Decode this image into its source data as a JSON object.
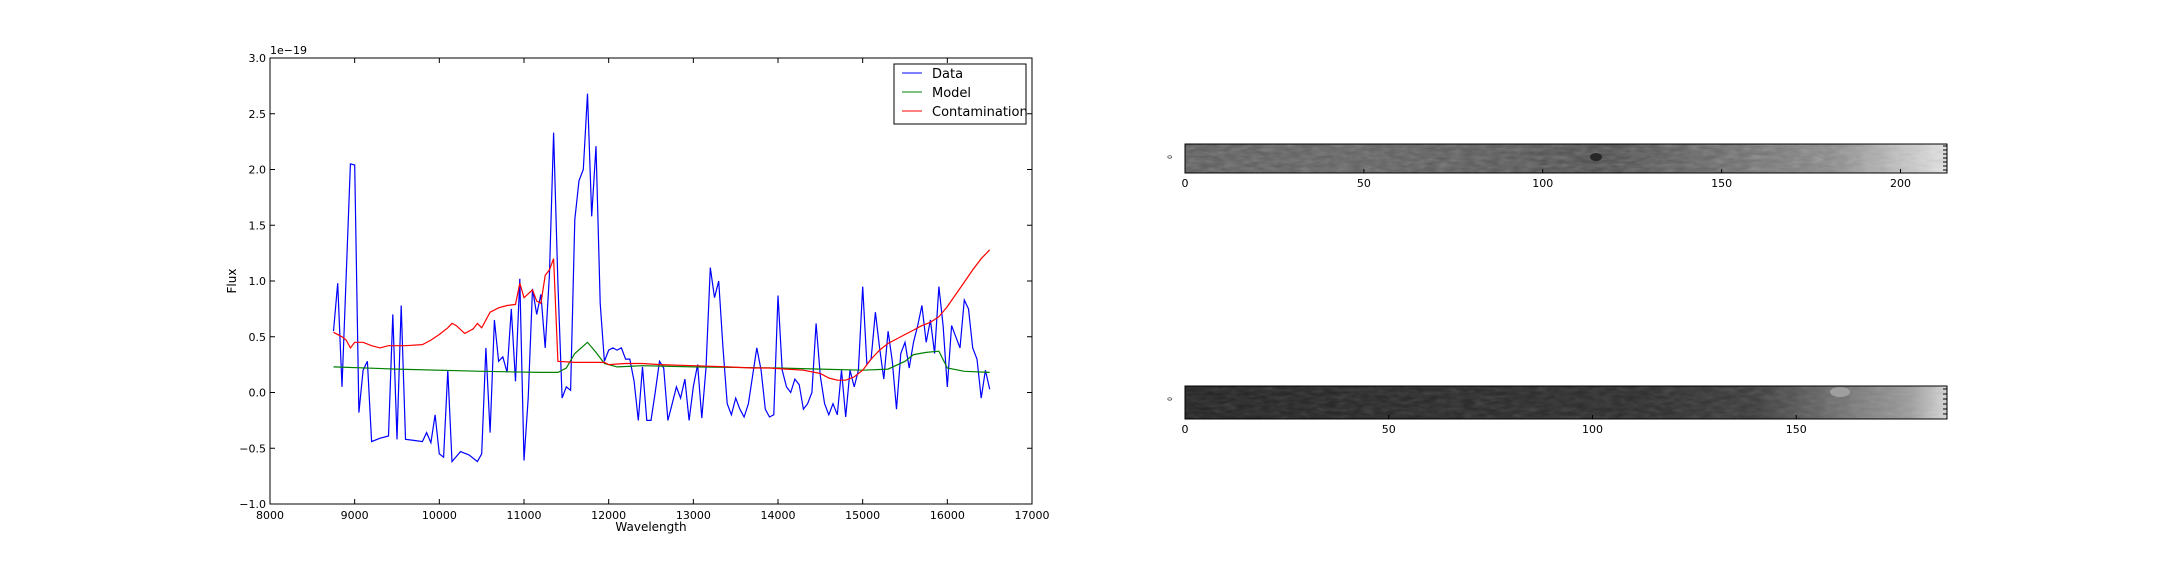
{
  "chart_data": [
    {
      "type": "line",
      "xlabel": "Wavelength",
      "ylabel": "Flux",
      "offset_label": "1e−19",
      "xlim": [
        8000,
        17000
      ],
      "ylim": [
        -1.0,
        3.0
      ],
      "xticks": [
        "8000",
        "9000",
        "10000",
        "11000",
        "12000",
        "13000",
        "14000",
        "15000",
        "16000",
        "17000"
      ],
      "yticks": [
        "−1.0",
        "−0.5",
        "0.0",
        "0.5",
        "1.0",
        "1.5",
        "2.0",
        "2.5",
        "3.0"
      ],
      "legend_position": "top-right",
      "grid": false,
      "series": [
        {
          "name": "Data",
          "color": "#0000ff",
          "points": [
            [
              8750,
              0.55
            ],
            [
              8800,
              0.98
            ],
            [
              8850,
              0.05
            ],
            [
              8950,
              2.05
            ],
            [
              9000,
              2.04
            ],
            [
              9050,
              -0.18
            ],
            [
              9100,
              0.2
            ],
            [
              9150,
              0.28
            ],
            [
              9200,
              -0.44
            ],
            [
              9300,
              -0.41
            ],
            [
              9400,
              -0.39
            ],
            [
              9450,
              0.7
            ],
            [
              9500,
              -0.42
            ],
            [
              9550,
              0.78
            ],
            [
              9600,
              -0.42
            ],
            [
              9700,
              -0.43
            ],
            [
              9800,
              -0.44
            ],
            [
              9850,
              -0.36
            ],
            [
              9900,
              -0.45
            ],
            [
              9950,
              -0.2
            ],
            [
              10000,
              -0.55
            ],
            [
              10050,
              -0.58
            ],
            [
              10100,
              0.2
            ],
            [
              10150,
              -0.62
            ],
            [
              10250,
              -0.53
            ],
            [
              10350,
              -0.56
            ],
            [
              10450,
              -0.62
            ],
            [
              10500,
              -0.55
            ],
            [
              10550,
              0.4
            ],
            [
              10600,
              -0.36
            ],
            [
              10650,
              0.65
            ],
            [
              10700,
              0.28
            ],
            [
              10750,
              0.32
            ],
            [
              10800,
              0.18
            ],
            [
              10850,
              0.75
            ],
            [
              10900,
              0.1
            ],
            [
              10950,
              1.02
            ],
            [
              11000,
              -0.61
            ],
            [
              11050,
              -0.05
            ],
            [
              11100,
              0.93
            ],
            [
              11150,
              0.7
            ],
            [
              11200,
              0.88
            ],
            [
              11250,
              0.4
            ],
            [
              11300,
              1.05
            ],
            [
              11350,
              2.33
            ],
            [
              11400,
              0.98
            ],
            [
              11450,
              -0.05
            ],
            [
              11500,
              0.05
            ],
            [
              11550,
              0.02
            ],
            [
              11600,
              1.55
            ],
            [
              11650,
              1.9
            ],
            [
              11700,
              2.0
            ],
            [
              11750,
              2.68
            ],
            [
              11800,
              1.58
            ],
            [
              11850,
              2.21
            ],
            [
              11900,
              0.8
            ],
            [
              11950,
              0.28
            ],
            [
              12000,
              0.38
            ],
            [
              12050,
              0.4
            ],
            [
              12100,
              0.38
            ],
            [
              12150,
              0.4
            ],
            [
              12200,
              0.3
            ],
            [
              12250,
              0.3
            ],
            [
              12300,
              0.1
            ],
            [
              12350,
              -0.25
            ],
            [
              12400,
              0.23
            ],
            [
              12450,
              -0.25
            ],
            [
              12500,
              -0.25
            ],
            [
              12550,
              0.0
            ],
            [
              12600,
              0.28
            ],
            [
              12650,
              0.22
            ],
            [
              12700,
              -0.25
            ],
            [
              12750,
              -0.1
            ],
            [
              12800,
              0.05
            ],
            [
              12850,
              -0.05
            ],
            [
              12900,
              0.12
            ],
            [
              12950,
              -0.25
            ],
            [
              13000,
              0.05
            ],
            [
              13050,
              0.25
            ],
            [
              13100,
              -0.23
            ],
            [
              13150,
              0.22
            ],
            [
              13200,
              1.12
            ],
            [
              13250,
              0.85
            ],
            [
              13300,
              1.0
            ],
            [
              13350,
              0.4
            ],
            [
              13400,
              -0.1
            ],
            [
              13450,
              -0.2
            ],
            [
              13500,
              -0.05
            ],
            [
              13550,
              -0.15
            ],
            [
              13600,
              -0.22
            ],
            [
              13650,
              -0.1
            ],
            [
              13700,
              0.15
            ],
            [
              13750,
              0.4
            ],
            [
              13800,
              0.2
            ],
            [
              13850,
              -0.15
            ],
            [
              13900,
              -0.22
            ],
            [
              13950,
              -0.2
            ],
            [
              14000,
              0.87
            ],
            [
              14050,
              0.2
            ],
            [
              14100,
              0.05
            ],
            [
              14150,
              0.0
            ],
            [
              14200,
              0.12
            ],
            [
              14250,
              0.07
            ],
            [
              14300,
              -0.15
            ],
            [
              14350,
              -0.1
            ],
            [
              14400,
              0.0
            ],
            [
              14450,
              0.62
            ],
            [
              14500,
              0.15
            ],
            [
              14550,
              -0.1
            ],
            [
              14600,
              -0.2
            ],
            [
              14650,
              -0.1
            ],
            [
              14700,
              -0.2
            ],
            [
              14750,
              0.2
            ],
            [
              14800,
              -0.22
            ],
            [
              14850,
              0.2
            ],
            [
              14900,
              0.05
            ],
            [
              14950,
              0.2
            ],
            [
              15000,
              0.95
            ],
            [
              15050,
              0.25
            ],
            [
              15100,
              0.3
            ],
            [
              15150,
              0.72
            ],
            [
              15200,
              0.4
            ],
            [
              15250,
              0.12
            ],
            [
              15300,
              0.55
            ],
            [
              15350,
              0.28
            ],
            [
              15400,
              -0.15
            ],
            [
              15450,
              0.35
            ],
            [
              15500,
              0.45
            ],
            [
              15550,
              0.22
            ],
            [
              15600,
              0.45
            ],
            [
              15650,
              0.6
            ],
            [
              15700,
              0.78
            ],
            [
              15750,
              0.45
            ],
            [
              15800,
              0.65
            ],
            [
              15850,
              0.35
            ],
            [
              15900,
              0.95
            ],
            [
              15950,
              0.6
            ],
            [
              16000,
              0.05
            ],
            [
              16050,
              0.6
            ],
            [
              16100,
              0.5
            ],
            [
              16150,
              0.4
            ],
            [
              16200,
              0.83
            ],
            [
              16250,
              0.75
            ],
            [
              16300,
              0.4
            ],
            [
              16350,
              0.3
            ],
            [
              16400,
              -0.05
            ],
            [
              16450,
              0.2
            ],
            [
              16500,
              0.03
            ]
          ]
        },
        {
          "name": "Model",
          "color": "#008000",
          "points": [
            [
              8750,
              0.23
            ],
            [
              9500,
              0.21
            ],
            [
              10500,
              0.19
            ],
            [
              11200,
              0.18
            ],
            [
              11400,
              0.18
            ],
            [
              11500,
              0.22
            ],
            [
              11600,
              0.35
            ],
            [
              11750,
              0.45
            ],
            [
              11850,
              0.36
            ],
            [
              11950,
              0.26
            ],
            [
              12100,
              0.23
            ],
            [
              12400,
              0.24
            ],
            [
              13000,
              0.23
            ],
            [
              14000,
              0.22
            ],
            [
              14500,
              0.21
            ],
            [
              15000,
              0.2
            ],
            [
              15300,
              0.21
            ],
            [
              15500,
              0.28
            ],
            [
              15600,
              0.34
            ],
            [
              15750,
              0.36
            ],
            [
              15900,
              0.37
            ],
            [
              16000,
              0.22
            ],
            [
              16200,
              0.19
            ],
            [
              16500,
              0.18
            ]
          ]
        },
        {
          "name": "Contamination",
          "color": "#ff0000",
          "points": [
            [
              8750,
              0.54
            ],
            [
              8850,
              0.5
            ],
            [
              8900,
              0.47
            ],
            [
              8950,
              0.4
            ],
            [
              9000,
              0.45
            ],
            [
              9100,
              0.45
            ],
            [
              9200,
              0.42
            ],
            [
              9300,
              0.4
            ],
            [
              9400,
              0.42
            ],
            [
              9600,
              0.42
            ],
            [
              9800,
              0.43
            ],
            [
              9900,
              0.47
            ],
            [
              10000,
              0.52
            ],
            [
              10100,
              0.58
            ],
            [
              10150,
              0.62
            ],
            [
              10200,
              0.6
            ],
            [
              10300,
              0.53
            ],
            [
              10400,
              0.57
            ],
            [
              10450,
              0.62
            ],
            [
              10500,
              0.58
            ],
            [
              10600,
              0.72
            ],
            [
              10700,
              0.76
            ],
            [
              10800,
              0.78
            ],
            [
              10900,
              0.79
            ],
            [
              10950,
              0.98
            ],
            [
              11000,
              0.85
            ],
            [
              11100,
              0.92
            ],
            [
              11150,
              0.82
            ],
            [
              11200,
              0.8
            ],
            [
              11250,
              1.05
            ],
            [
              11300,
              1.1
            ],
            [
              11350,
              1.2
            ],
            [
              11400,
              0.28
            ],
            [
              11600,
              0.27
            ],
            [
              11800,
              0.27
            ],
            [
              11950,
              0.27
            ],
            [
              12000,
              0.25
            ],
            [
              12200,
              0.26
            ],
            [
              12400,
              0.26
            ],
            [
              12600,
              0.25
            ],
            [
              13000,
              0.24
            ],
            [
              13400,
              0.23
            ],
            [
              13700,
              0.22
            ],
            [
              13900,
              0.22
            ],
            [
              14100,
              0.21
            ],
            [
              14300,
              0.2
            ],
            [
              14500,
              0.17
            ],
            [
              14600,
              0.13
            ],
            [
              14700,
              0.11
            ],
            [
              14800,
              0.11
            ],
            [
              14900,
              0.14
            ],
            [
              15000,
              0.2
            ],
            [
              15100,
              0.3
            ],
            [
              15200,
              0.38
            ],
            [
              15300,
              0.44
            ],
            [
              15400,
              0.48
            ],
            [
              15500,
              0.52
            ],
            [
              15600,
              0.56
            ],
            [
              15700,
              0.6
            ],
            [
              15800,
              0.63
            ],
            [
              15900,
              0.68
            ],
            [
              16000,
              0.77
            ],
            [
              16100,
              0.88
            ],
            [
              16200,
              0.99
            ],
            [
              16300,
              1.1
            ],
            [
              16400,
              1.2
            ],
            [
              16500,
              1.28
            ]
          ]
        }
      ]
    },
    {
      "type": "heatmap",
      "xticks": [
        "0",
        "50",
        "100",
        "150",
        "200"
      ],
      "xlim": [
        0,
        213
      ],
      "colormap": "gray"
    },
    {
      "type": "heatmap",
      "xticks": [
        "0",
        "50",
        "100",
        "150"
      ],
      "xlim": [
        0,
        187
      ],
      "colormap": "gray"
    }
  ]
}
